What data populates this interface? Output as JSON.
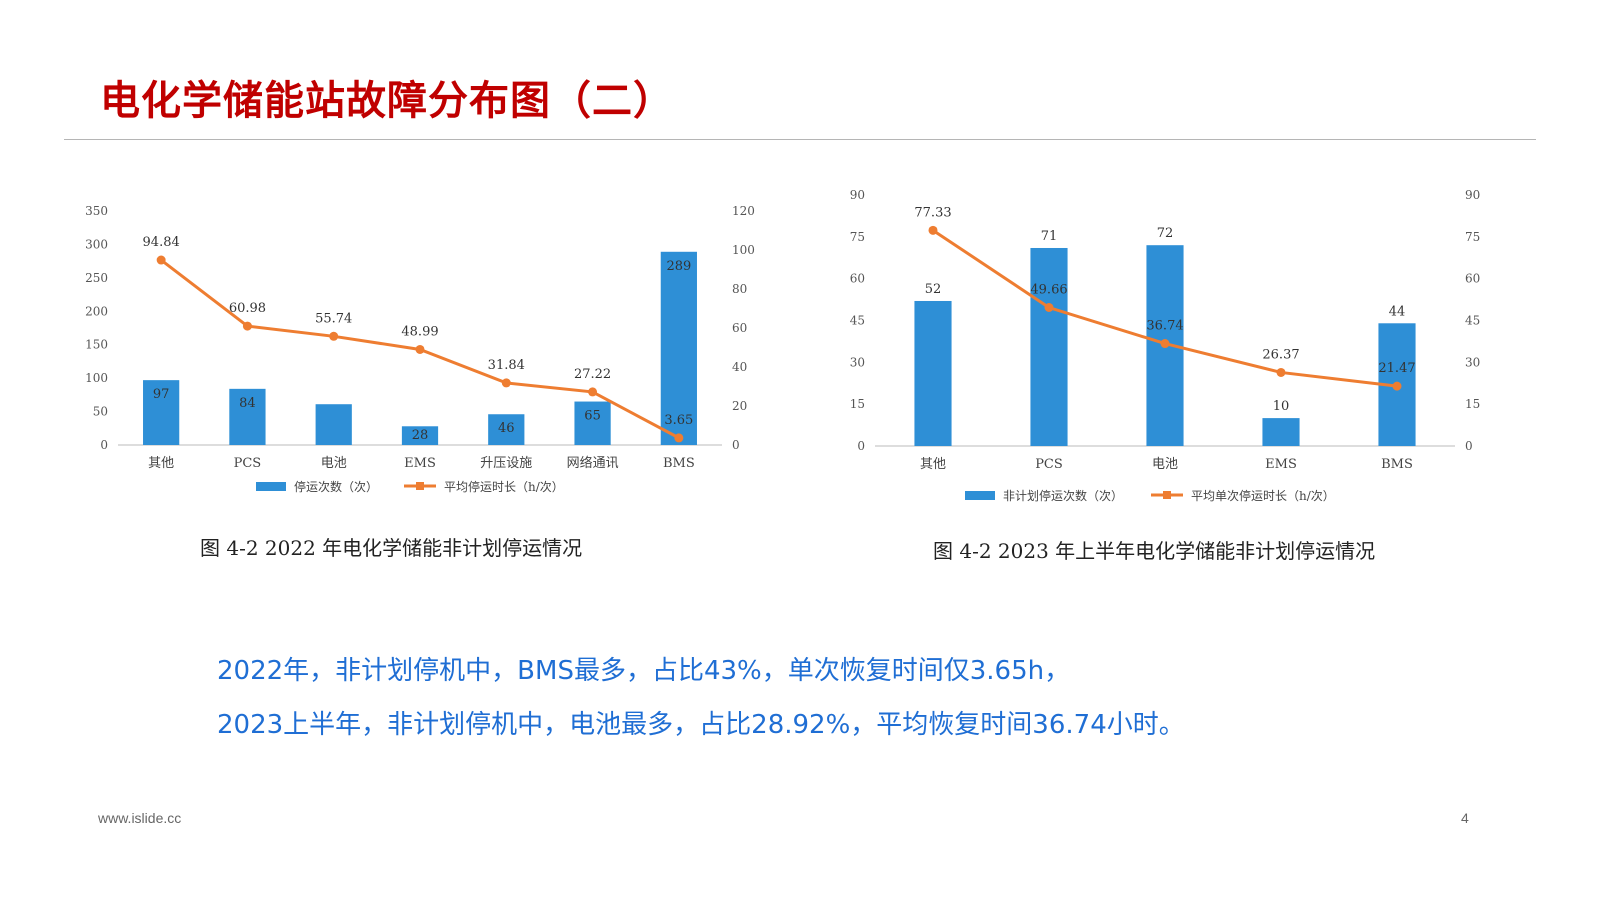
{
  "page": {
    "title": "电化学储能站故障分布图（二）",
    "summary_lines": [
      "2022年，非计划停机中，BMS最多，占比43%，单次恢复时间仅3.65h，",
      "2023上半年，非计划停机中，电池最多，占比28.92%，平均恢复时间36.74小时。"
    ],
    "footer_url": "www.islide.cc",
    "page_number": "4"
  },
  "colors": {
    "title": "#c00000",
    "bar": "#2e8fd6",
    "line": "#ee7d31",
    "summary_text": "#1f6ed4"
  },
  "chart_data": [
    {
      "type": "bar",
      "caption": "图 4-2  2022 年电化学储能非计划停运情况",
      "categories": [
        "其他",
        "PCS",
        "电池",
        "EMS",
        "升压设施",
        "网络通讯",
        "BMS"
      ],
      "series": [
        {
          "name": "停运次数（次）",
          "type": "bar",
          "axis": "left",
          "values": [
            97,
            84,
            61,
            28,
            46,
            65,
            289
          ]
        },
        {
          "name": "平均停运时长（h/次）",
          "type": "line",
          "axis": "right",
          "values": [
            94.84,
            60.98,
            55.74,
            48.99,
            31.84,
            27.22,
            3.65
          ]
        }
      ],
      "bar_labels": [
        "97",
        "84",
        "",
        "28",
        "46",
        "65",
        "289"
      ],
      "line_labels": [
        "94.84",
        "60.98",
        "55.74",
        "48.99",
        "31.84",
        "27.22",
        "3.65"
      ],
      "y_left": {
        "min": 0,
        "max": 350,
        "ticks": [
          "0",
          "50",
          "100",
          "150",
          "200",
          "250",
          "300",
          "350"
        ]
      },
      "y_right": {
        "min": 0,
        "max": 120,
        "ticks": [
          "0",
          "20",
          "40",
          "60",
          "80",
          "100",
          "120"
        ]
      },
      "legend": [
        "停运次数（次）",
        "平均停运时长（h/次）"
      ],
      "legend_position": "bottom",
      "grid": false
    },
    {
      "type": "bar",
      "caption": "图 4-2  2023 年上半年电化学储能非计划停运情况",
      "categories": [
        "其他",
        "PCS",
        "电池",
        "EMS",
        "BMS"
      ],
      "series": [
        {
          "name": "非计划停运次数（次）",
          "type": "bar",
          "axis": "left",
          "values": [
            52,
            71,
            72,
            10,
            44
          ]
        },
        {
          "name": "平均单次停运时长（h/次）",
          "type": "line",
          "axis": "right",
          "values": [
            77.33,
            49.66,
            36.74,
            26.37,
            21.47
          ]
        }
      ],
      "bar_labels": [
        "52",
        "71",
        "72",
        "10",
        "44"
      ],
      "line_labels": [
        "77.33",
        "49.66",
        "36.74",
        "26.37",
        "21.47"
      ],
      "y_left": {
        "min": 0,
        "max": 90,
        "ticks": [
          "0",
          "15",
          "30",
          "45",
          "60",
          "75",
          "90"
        ]
      },
      "y_right": {
        "min": 0,
        "max": 90,
        "ticks": [
          "0",
          "15",
          "30",
          "45",
          "60",
          "75",
          "90"
        ]
      },
      "legend": [
        "非计划停运次数（次）",
        "平均单次停运时长（h/次）"
      ],
      "legend_position": "bottom",
      "grid": false
    }
  ]
}
